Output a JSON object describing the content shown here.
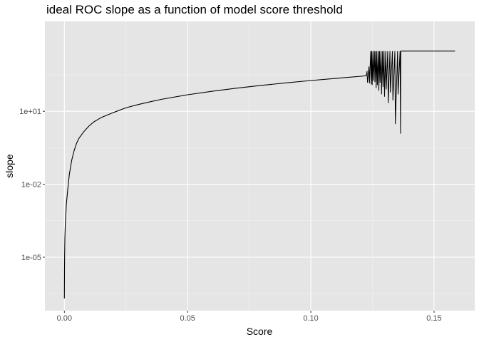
{
  "chart_data": {
    "type": "line",
    "title": "ideal ROC slope as a function of model score threshold",
    "xlabel": "Score",
    "ylabel": "slope",
    "x_scale": "linear",
    "y_scale": "log10",
    "xlim": [
      -0.0079,
      0.1665
    ],
    "ylim_log10": [
      -7.2,
      4.7
    ],
    "x_ticks": [
      0.0,
      0.05,
      0.1,
      0.15
    ],
    "x_tick_labels": [
      "0.00",
      "0.05",
      "0.10",
      "0.15"
    ],
    "y_ticks_log10": [
      -5,
      -2,
      1
    ],
    "y_tick_labels": [
      "1e-05",
      "1e-02",
      "1e+01"
    ],
    "grid": true,
    "background": "#e5e5e5",
    "line_color": "#000000",
    "series": [
      {
        "x": [
          0.0,
          1e-05,
          5e-05,
          0.0001,
          0.0002,
          0.0004,
          0.0008,
          0.0012,
          0.0016,
          0.002,
          0.003,
          0.004,
          0.005,
          0.006,
          0.008,
          0.01,
          0.012,
          0.015,
          0.02,
          0.025,
          0.03,
          0.035,
          0.04,
          0.05,
          0.06,
          0.07,
          0.08,
          0.09,
          0.1,
          0.11,
          0.115,
          0.12,
          0.1225
        ],
        "y": [
          2e-07,
          4e-07,
          3e-06,
          1.2e-05,
          6e-05,
          0.00025,
          0.0015,
          0.004,
          0.01,
          0.025,
          0.1,
          0.25,
          0.5,
          0.8,
          1.5,
          2.5,
          3.7,
          5.6,
          9,
          14,
          19,
          25,
          32,
          48,
          67,
          90,
          117,
          148,
          185,
          225,
          250,
          275,
          290
        ]
      }
    ],
    "noisy_region": {
      "x_start": 0.1225,
      "x_end": 0.1365,
      "spikes": [
        {
          "x": 0.1228,
          "low": 150,
          "high": 450
        },
        {
          "x": 0.1236,
          "low": 140,
          "high": 700
        },
        {
          "x": 0.1243,
          "low": 130,
          "high": 3000
        },
        {
          "x": 0.1247,
          "low": 120,
          "high": 3000
        },
        {
          "x": 0.1252,
          "low": 180,
          "high": 3000
        },
        {
          "x": 0.1258,
          "low": 160,
          "high": 3000
        },
        {
          "x": 0.1263,
          "low": 90,
          "high": 3000
        },
        {
          "x": 0.1268,
          "low": 120,
          "high": 3000
        },
        {
          "x": 0.1274,
          "low": 70,
          "high": 3000
        },
        {
          "x": 0.1279,
          "low": 150,
          "high": 3000
        },
        {
          "x": 0.1285,
          "low": 50,
          "high": 3000
        },
        {
          "x": 0.1291,
          "low": 100,
          "high": 3000
        },
        {
          "x": 0.1297,
          "low": 40,
          "high": 3000
        },
        {
          "x": 0.1304,
          "low": 80,
          "high": 3000
        },
        {
          "x": 0.1312,
          "low": 22,
          "high": 3000
        },
        {
          "x": 0.1321,
          "low": 60,
          "high": 3000
        },
        {
          "x": 0.1331,
          "low": 28,
          "high": 3000
        },
        {
          "x": 0.1341,
          "low": 3,
          "high": 3000
        },
        {
          "x": 0.1352,
          "low": 50,
          "high": 3000
        },
        {
          "x": 0.1362,
          "low": 1.2,
          "high": 3000
        }
      ]
    },
    "plateau": {
      "x_start": 0.1365,
      "x_end": 0.1585,
      "y": 3000
    }
  }
}
